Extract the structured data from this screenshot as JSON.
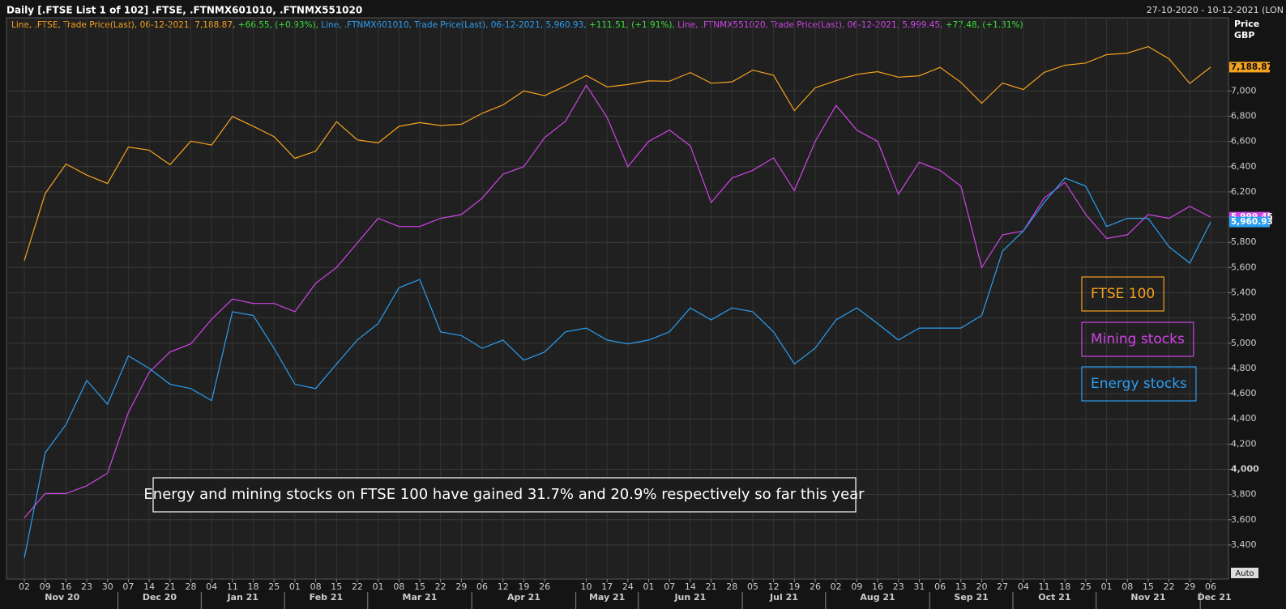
{
  "chart_data": {
    "type": "line",
    "header": "Daily [.FTSE List 1 of 102] .FTSE, .FTNMX601010, .FTNMX551020",
    "date_range": "27-10-2020 - 10-12-2021 (LON",
    "info_line": [
      {
        "text": "Line, .FTSE, Trade Price(Last), 06-12-2021, 7,188.87, ",
        "color": "#f5a21e"
      },
      {
        "text": "+66.55, (+0.93%), ",
        "color": "#3ddc3d"
      },
      {
        "text": "Line, .FTNMX601010, Trade Price(Last), 06-12-2021, 5,960.93, ",
        "color": "#2b9ef0"
      },
      {
        "text": "+111.51, (+1.91%), ",
        "color": "#3ddc3d"
      },
      {
        "text": "Line, .FTNMX551020, Trade Price(Last), 06-12-2021, 5,999.45, ",
        "color": "#cf45e6"
      },
      {
        "text": "+77.48, (+1.31%)",
        "color": "#3ddc3d"
      }
    ],
    "y_axis_label": [
      "Price",
      "GBP"
    ],
    "annotation": "Energy and mining stocks on FTSE 100 have gained 31.7% and 20.9% respectively so far this year",
    "auto_button": "Auto",
    "categories": [
      "02",
      "09",
      "16",
      "23",
      "30",
      "07",
      "14",
      "21",
      "28",
      "04",
      "11",
      "18",
      "25",
      "01",
      "08",
      "15",
      "22",
      "01",
      "08",
      "15",
      "22",
      "29",
      "06",
      "12",
      "19",
      "26",
      null,
      "10",
      "17",
      "24",
      "01",
      "07",
      "14",
      "21",
      "28",
      "05",
      "12",
      "19",
      "26",
      "02",
      "09",
      "16",
      "23",
      "31",
      "06",
      "13",
      "20",
      "27",
      "04",
      "11",
      "18",
      "25",
      "01",
      "08",
      "15",
      "22",
      "29",
      "06"
    ],
    "month_labels": [
      "Nov 20",
      "Dec 20",
      "Jan 21",
      "Feb 21",
      "Mar 21",
      "Apr 21",
      "May 21",
      "Jun 21",
      "Jul 21",
      "Aug 21",
      "Sep 21",
      "Oct 21",
      "Nov 21",
      "Dec 21"
    ],
    "series": [
      {
        "name": "FTSE 100",
        "color": "#f5a21e",
        "last_value_label": "7,188.87",
        "values": [
          5654,
          6186,
          6421,
          6333,
          6266,
          6555,
          6531,
          6416,
          6602,
          6571,
          6798,
          6720,
          6638,
          6466,
          6523,
          6756,
          6612,
          6588,
          6719,
          6749,
          6726,
          6736,
          6823,
          6889,
          7000,
          6963,
          7040,
          7123,
          7032,
          7051,
          7080,
          7077,
          7146,
          7062,
          7072,
          7165,
          7125,
          6844,
          7025,
          7081,
          7132,
          7153,
          7109,
          7120,
          7187,
          7068,
          6903,
          7063,
          7011,
          7147,
          7204,
          7222,
          7288,
          7300,
          7352,
          7255,
          7059,
          7188.87
        ]
      },
      {
        "name": "Mining stocks",
        "color": "#cf45e6",
        "last_value_label": "5,999.45",
        "values": [
          3615,
          3808,
          3808,
          3870,
          3970,
          4450,
          4770,
          4930,
          4995,
          5190,
          5350,
          5315,
          5315,
          5250,
          5475,
          5600,
          5795,
          5990,
          5925,
          5925,
          5990,
          6020,
          6150,
          6340,
          6400,
          6630,
          6760,
          7045,
          6790,
          6400,
          6600,
          6690,
          6565,
          6115,
          6310,
          6370,
          6470,
          6210,
          6600,
          6885,
          6690,
          6600,
          6180,
          6435,
          6370,
          6245,
          5600,
          5860,
          5890,
          6150,
          6275,
          6020,
          5830,
          5860,
          6020,
          5990,
          6085,
          5999.45
        ]
      },
      {
        "name": "Energy stocks",
        "color": "#2b9ef0",
        "last_value_label": "5,960.93",
        "values": [
          3295,
          4130,
          4355,
          4705,
          4515,
          4900,
          4800,
          4675,
          4640,
          4545,
          5250,
          5220,
          4960,
          4675,
          4640,
          4835,
          5025,
          5155,
          5440,
          5505,
          5090,
          5060,
          4960,
          5025,
          4865,
          4930,
          5090,
          5120,
          5025,
          4995,
          5025,
          5090,
          5280,
          5185,
          5280,
          5250,
          5090,
          4835,
          4960,
          5185,
          5280,
          5155,
          5025,
          5120,
          5120,
          5120,
          5220,
          5730,
          5890,
          6115,
          6310,
          6245,
          5925,
          5990,
          5990,
          5765,
          5635,
          5960.93
        ]
      }
    ],
    "ylim": [
      3130,
      7580
    ],
    "yticks": [
      {
        "value": 3400,
        "label": "3,400"
      },
      {
        "value": 3600,
        "label": "3,600"
      },
      {
        "value": 3800,
        "label": "3,800"
      },
      {
        "value": 4000,
        "label": "4,000"
      },
      {
        "value": 4200,
        "label": "4,200"
      },
      {
        "value": 4400,
        "label": "4,400"
      },
      {
        "value": 4600,
        "label": "4,600"
      },
      {
        "value": 4800,
        "label": "4,800"
      },
      {
        "value": 5000,
        "label": "5,000"
      },
      {
        "value": 5200,
        "label": "5,200"
      },
      {
        "value": 5400,
        "label": "5,400"
      },
      {
        "value": 5600,
        "label": "5,600"
      },
      {
        "value": 5800,
        "label": "5,800"
      },
      {
        "value": 6000,
        "label": "6,000"
      },
      {
        "value": 6200,
        "label": "6,200"
      },
      {
        "value": 6400,
        "label": "6,400"
      },
      {
        "value": 6600,
        "label": "6,600"
      },
      {
        "value": 6800,
        "label": "6,800"
      },
      {
        "value": 7000,
        "label": "7,000"
      }
    ],
    "highlight_ytick": 4000,
    "grid": true
  }
}
